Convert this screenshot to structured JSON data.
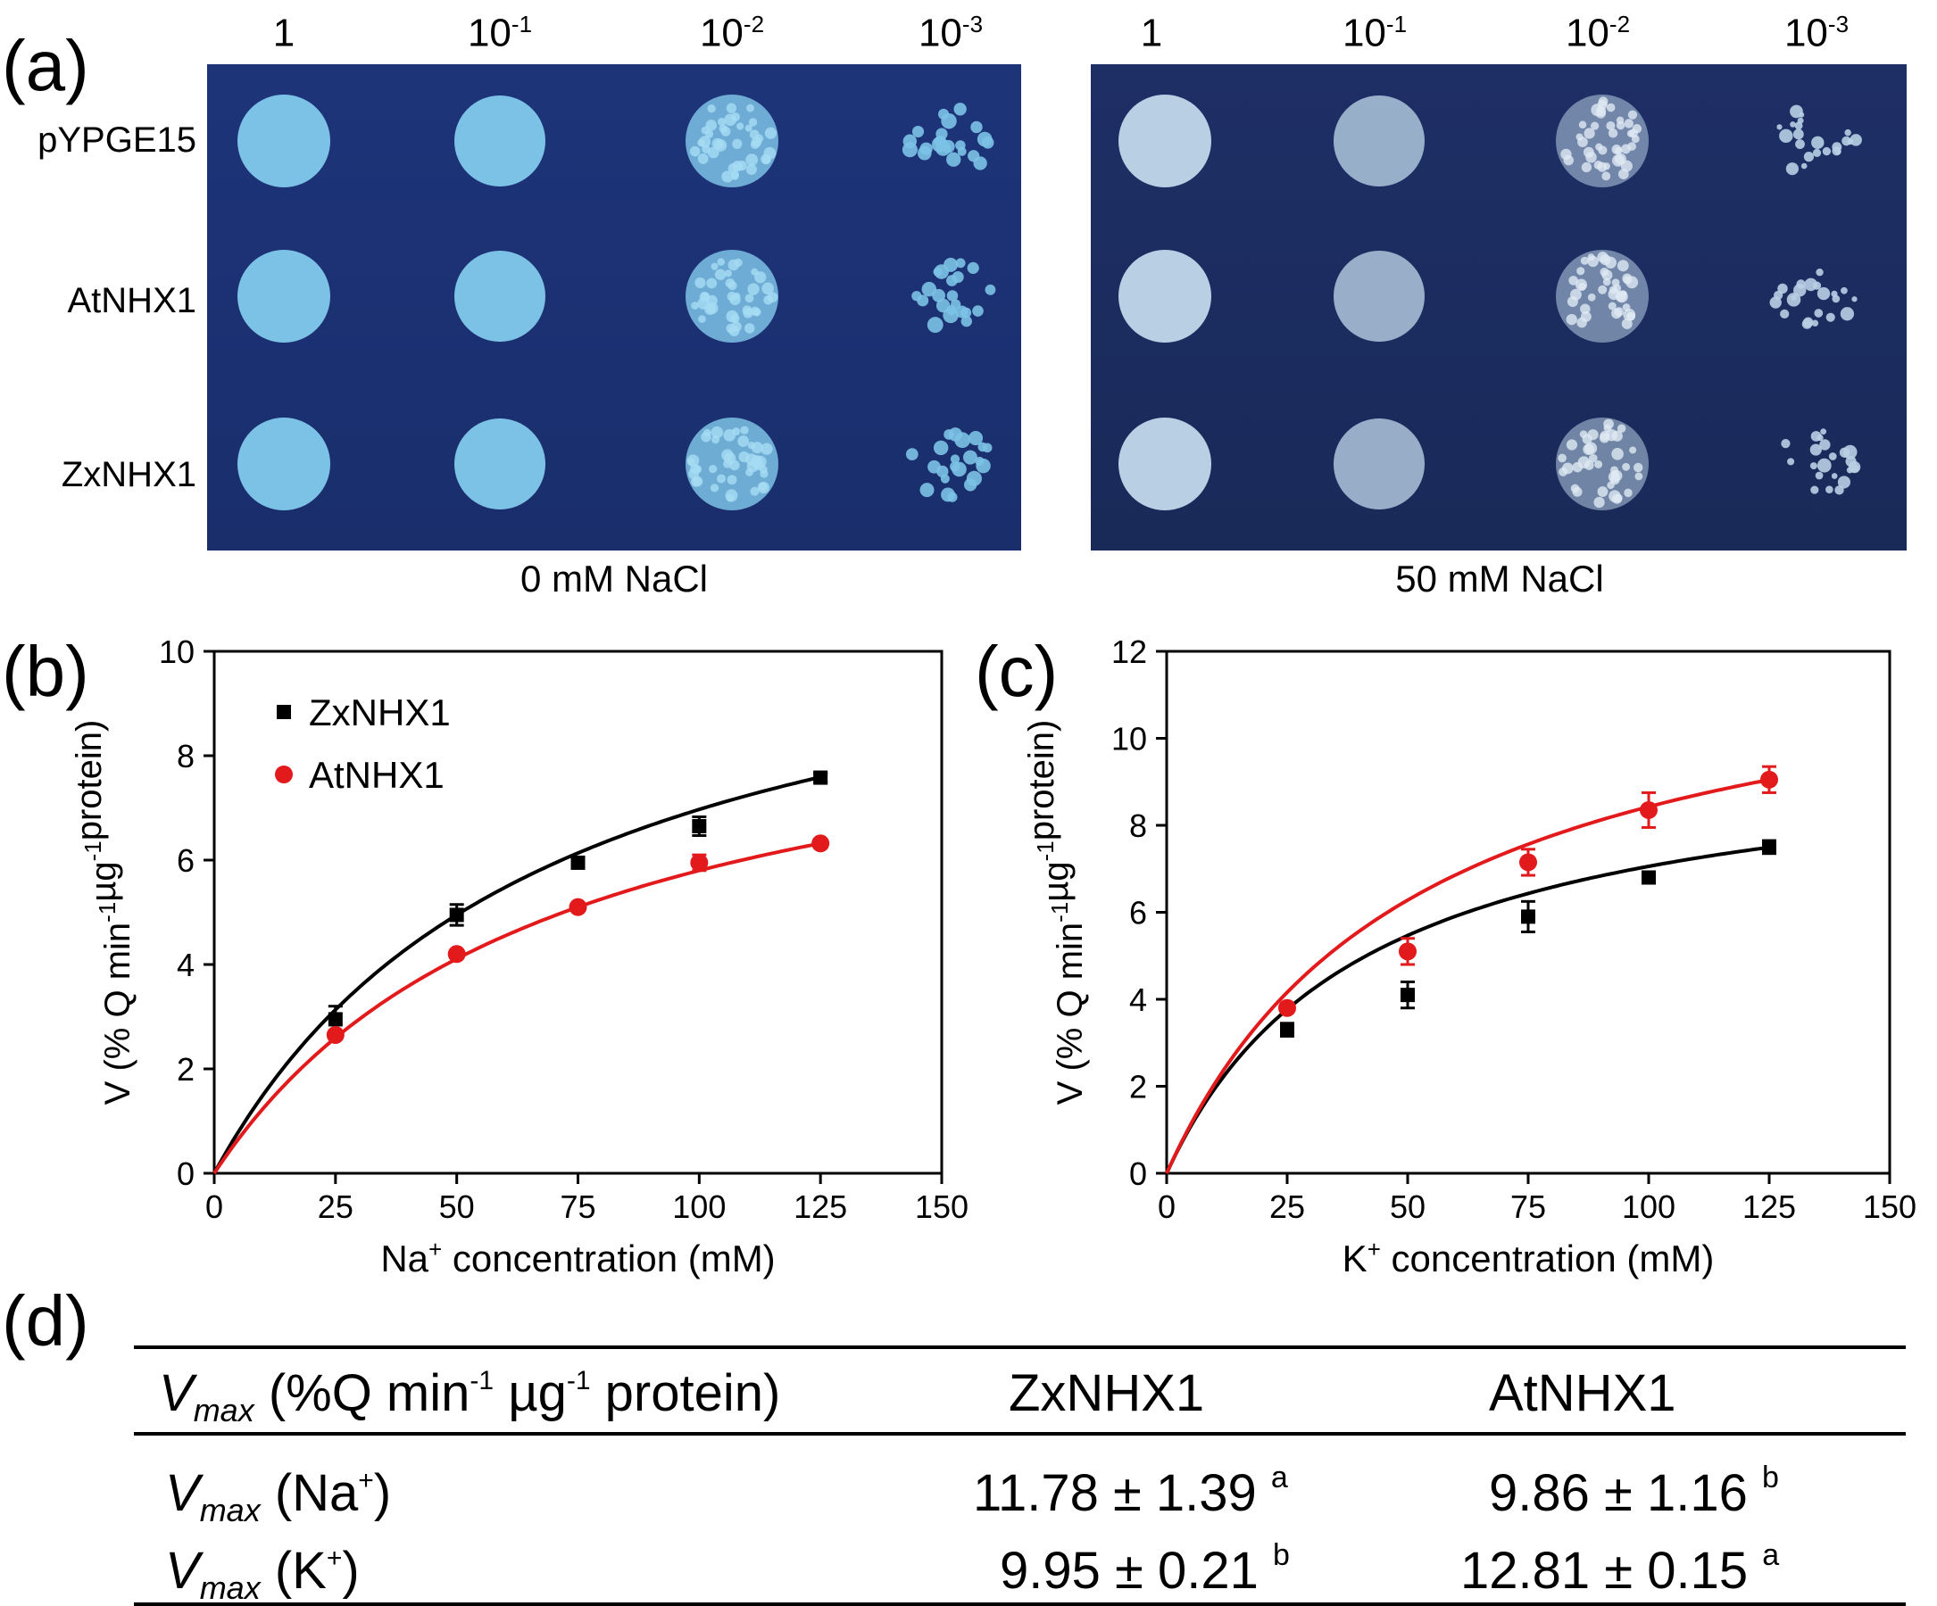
{
  "panel_a": {
    "label": "(a)",
    "dilutions": [
      "1",
      "10",
      "10",
      "10"
    ],
    "dilution_exponents": [
      "",
      "-1",
      "-2",
      "-3"
    ],
    "strains": [
      "pYPGE15",
      "AtNHX1",
      "ZxNHX1"
    ],
    "conditions": [
      "0 mM NaCl",
      "50 mM NaCl"
    ],
    "colors": {
      "plate_left": "#1d3479",
      "plate_right": "#1e2f66",
      "colony_left": "#7cc2e6",
      "colony_right": "#b8cfe4"
    }
  },
  "chart_data": [
    {
      "panel": "(b)",
      "type": "scatter",
      "xlabel_main": "Na",
      "xlabel_sup": "+",
      "xlabel_rest": " concentration  (mM)",
      "ylabel": "V (% Q min-1µg-1protein)",
      "xlim": [
        0,
        150
      ],
      "ylim": [
        0,
        10
      ],
      "xticks": [
        "0",
        "25",
        "50",
        "75",
        "100",
        "125",
        "150"
      ],
      "yticks": [
        "0",
        "2",
        "4",
        "6",
        "8",
        "10"
      ],
      "legend_position": "top-left",
      "series": [
        {
          "name": "ZxNHX1",
          "color": "#000000",
          "marker": "square",
          "x": [
            25,
            50,
            75,
            100,
            125
          ],
          "y": [
            2.95,
            4.95,
            5.95,
            6.65,
            7.58
          ],
          "err": [
            0.25,
            0.2,
            0.1,
            0.18,
            0.08
          ],
          "fit_vmax": 11.78,
          "fit_km": 69
        },
        {
          "name": "AtNHX1",
          "color": "#e31a1c",
          "marker": "circle",
          "x": [
            25,
            50,
            75,
            100,
            125
          ],
          "y": [
            2.65,
            4.2,
            5.1,
            5.95,
            6.32
          ],
          "err": [
            0.08,
            0.08,
            0.08,
            0.15,
            0.08
          ],
          "fit_vmax": 9.86,
          "fit_km": 70
        }
      ]
    },
    {
      "panel": "(c)",
      "type": "scatter",
      "xlabel_main": "K",
      "xlabel_sup": "+",
      "xlabel_rest": " concentration  (mM)",
      "ylabel": "V (% Q min-1µg-1protein)",
      "xlim": [
        0,
        150
      ],
      "ylim": [
        0,
        12
      ],
      "xticks": [
        "0",
        "25",
        "50",
        "75",
        "100",
        "125",
        "150"
      ],
      "yticks": [
        "0",
        "2",
        "4",
        "6",
        "8",
        "10",
        "12"
      ],
      "series": [
        {
          "name": "ZxNHX1",
          "color": "#000000",
          "marker": "square",
          "x": [
            25,
            50,
            75,
            100,
            125
          ],
          "y": [
            3.3,
            4.1,
            5.9,
            6.8,
            7.5
          ],
          "err": [
            0.15,
            0.3,
            0.35,
            0.08,
            0.15
          ],
          "fit_vmax": 9.95,
          "fit_km": 41
        },
        {
          "name": "AtNHX1",
          "color": "#e31a1c",
          "marker": "circle",
          "x": [
            25,
            50,
            75,
            100,
            125
          ],
          "y": [
            3.8,
            5.1,
            7.15,
            8.35,
            9.05
          ],
          "err": [
            0.1,
            0.3,
            0.3,
            0.4,
            0.3
          ],
          "fit_vmax": 12.81,
          "fit_km": 52
        }
      ]
    }
  ],
  "panel_d": {
    "label": "(d)",
    "header": {
      "vmax_v": "V",
      "vmax_sub": "max",
      "unit_open": " (%Q min",
      "unit_sup1": "-1",
      "unit_mid": "  µg",
      "unit_sup2": "-1",
      "unit_close": " protein)",
      "col1": "ZxNHX1",
      "col2": "AtNHX1"
    },
    "rows": [
      {
        "ion_open": " (Na",
        "ion_sup": "+",
        "ion_close": ")",
        "zx_value": "11.78 ± 1.39 ",
        "zx_letter": "a",
        "at_value": "9.86 ± 1.16 ",
        "at_letter": "b"
      },
      {
        "ion_open": " (K",
        "ion_sup": "+",
        "ion_close": ")",
        "zx_value": "9.95 ± 0.21 ",
        "zx_letter": "b",
        "at_value": "12.81 ± 0.15 ",
        "at_letter": "a"
      }
    ]
  }
}
